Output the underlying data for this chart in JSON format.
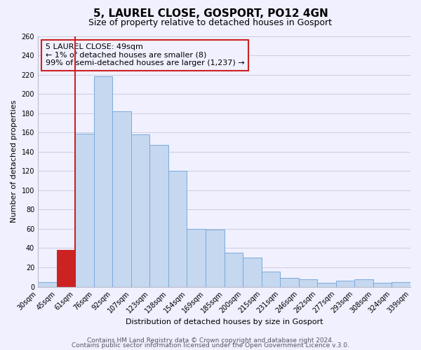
{
  "title": "5, LAUREL CLOSE, GOSPORT, PO12 4GN",
  "subtitle": "Size of property relative to detached houses in Gosport",
  "xlabel": "Distribution of detached houses by size in Gosport",
  "ylabel": "Number of detached properties",
  "bin_labels": [
    "30sqm",
    "45sqm",
    "61sqm",
    "76sqm",
    "92sqm",
    "107sqm",
    "123sqm",
    "138sqm",
    "154sqm",
    "169sqm",
    "185sqm",
    "200sqm",
    "215sqm",
    "231sqm",
    "246sqm",
    "262sqm",
    "277sqm",
    "293sqm",
    "308sqm",
    "324sqm",
    "339sqm"
  ],
  "bar_values": [
    5,
    38,
    159,
    218,
    182,
    158,
    147,
    120,
    60,
    59,
    35,
    30,
    16,
    9,
    8,
    4,
    6,
    8,
    4,
    5
  ],
  "bar_color": "#c5d8ef",
  "bar_edge_color": "#7aaadd",
  "highlight_bar_index": 1,
  "highlight_color": "#cc2222",
  "annotation_title": "5 LAUREL CLOSE: 49sqm",
  "annotation_line1": "← 1% of detached houses are smaller (8)",
  "annotation_line2": "99% of semi-detached houses are larger (1,237) →",
  "ylim": [
    0,
    260
  ],
  "yticks": [
    0,
    20,
    40,
    60,
    80,
    100,
    120,
    140,
    160,
    180,
    200,
    220,
    240,
    260
  ],
  "footer1": "Contains HM Land Registry data © Crown copyright and database right 2024.",
  "footer2": "Contains public sector information licensed under the Open Government Licence v.3.0.",
  "bg_color": "#f0f0ff",
  "grid_color": "#ccccdd",
  "title_fontsize": 11,
  "subtitle_fontsize": 9,
  "axis_label_fontsize": 8,
  "tick_fontsize": 7,
  "annotation_fontsize": 8,
  "footer_fontsize": 6.5
}
